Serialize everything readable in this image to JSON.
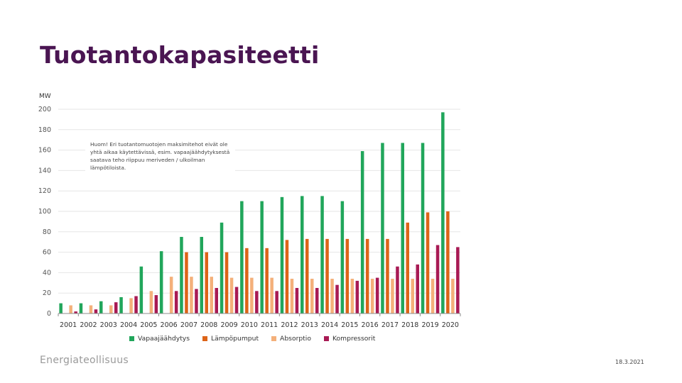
{
  "slide": {
    "title": "Tuotantokapasiteetti",
    "company": "Energiateollisuus",
    "date": "18.3.2021"
  },
  "note": {
    "text": "Huom! Eri tuotantomuotojen maksimitehot eivät ole yhtä aikaa käytettävissä, esim. vapaajäähdytyksestä saatava teho riippuu meriveden / ulkoilman lämpötiloista."
  },
  "chart_data": {
    "type": "bar",
    "title": "",
    "ylabel": "MW",
    "xlabel": "",
    "ylim": [
      0,
      200
    ],
    "yticks": [
      0,
      20,
      40,
      60,
      80,
      100,
      120,
      140,
      160,
      180,
      200
    ],
    "grid": true,
    "legend_position": "bottom",
    "categories": [
      "2001",
      "2002",
      "2003",
      "2004",
      "2005",
      "2006",
      "2007",
      "2008",
      "2009",
      "2010",
      "2011",
      "2012",
      "2013",
      "2014",
      "2015",
      "2016",
      "2017",
      "2018",
      "2019",
      "2020"
    ],
    "series": [
      {
        "name": "Vapaajäähdytys",
        "color": "#21a65b",
        "values": [
          10,
          10,
          12,
          16,
          46,
          61,
          75,
          75,
          89,
          110,
          110,
          114,
          115,
          115,
          110,
          159,
          167,
          167,
          167,
          197
        ]
      },
      {
        "name": "Lämpöpumput",
        "color": "#dd6418",
        "values": [
          0,
          0,
          0,
          0,
          0,
          0,
          60,
          60,
          60,
          64,
          64,
          72,
          73,
          73,
          73,
          73,
          73,
          89,
          99,
          100
        ]
      },
      {
        "name": "Absorptio",
        "color": "#f4b07a",
        "values": [
          8,
          8,
          8,
          15,
          22,
          36,
          36,
          36,
          35,
          35,
          35,
          34,
          34,
          34,
          34,
          34,
          34,
          34,
          34,
          34
        ]
      },
      {
        "name": "Kompressorit",
        "color": "#a81a54",
        "values": [
          2,
          4,
          11,
          17,
          18,
          22,
          24,
          25,
          26,
          22,
          22,
          25,
          25,
          28,
          32,
          35,
          46,
          48,
          67,
          65
        ]
      }
    ]
  }
}
